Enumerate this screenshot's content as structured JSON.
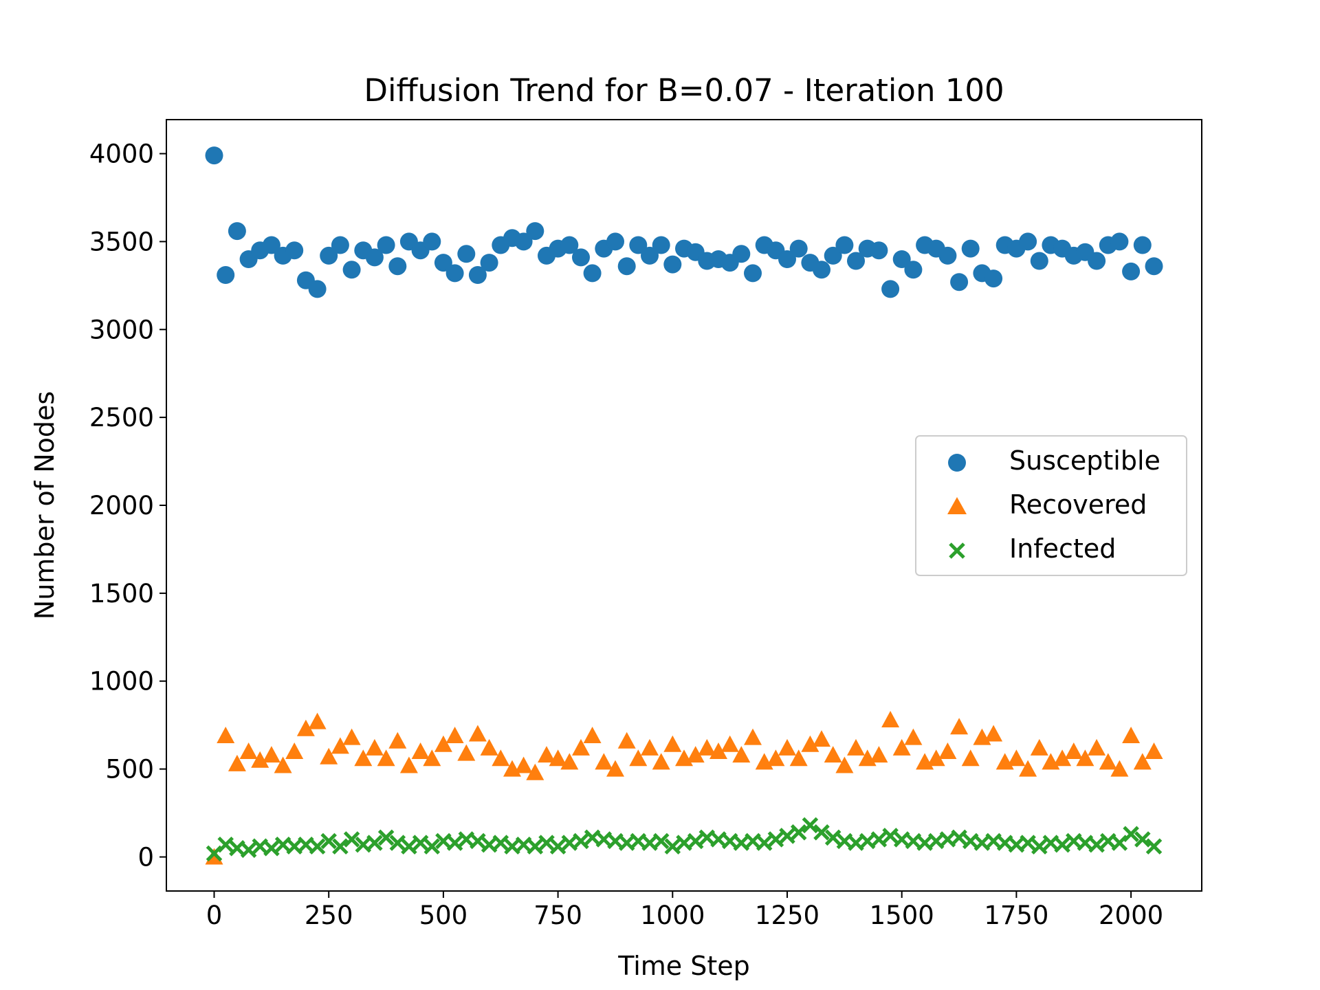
{
  "chart_data": {
    "type": "scatter",
    "title": "Diffusion Trend for B=0.07 - Iteration 100",
    "xlabel": "Time Step",
    "ylabel": "Number of Nodes",
    "xlim": [
      -104.3,
      2154.3
    ],
    "ylim": [
      -193.7,
      4193.7
    ],
    "xticks": [
      0,
      250,
      500,
      750,
      1000,
      1250,
      1500,
      1750,
      2000
    ],
    "yticks": [
      0,
      500,
      1000,
      1500,
      2000,
      2500,
      3000,
      3500,
      4000
    ],
    "grid": false,
    "legend_position": "center-right",
    "series": [
      {
        "name": "Susceptible",
        "marker": "circle",
        "color": "#1f77b4",
        "x": [
          0,
          25,
          50,
          75,
          100,
          125,
          150,
          175,
          200,
          225,
          250,
          275,
          300,
          325,
          350,
          375,
          400,
          425,
          450,
          475,
          500,
          525,
          550,
          575,
          600,
          625,
          650,
          675,
          700,
          725,
          750,
          775,
          800,
          825,
          850,
          875,
          900,
          925,
          950,
          975,
          1000,
          1025,
          1050,
          1075,
          1100,
          1125,
          1150,
          1175,
          1200,
          1225,
          1250,
          1275,
          1300,
          1325,
          1350,
          1375,
          1400,
          1425,
          1450,
          1475,
          1500,
          1525,
          1550,
          1575,
          1600,
          1625,
          1650,
          1675,
          1700,
          1725,
          1750,
          1775,
          1800,
          1825,
          1850,
          1875,
          1900,
          1925,
          1950,
          1975,
          2000,
          2025,
          2050
        ],
        "y": [
          3990,
          3310,
          3560,
          3400,
          3450,
          3480,
          3420,
          3450,
          3280,
          3230,
          3420,
          3480,
          3340,
          3450,
          3410,
          3480,
          3360,
          3500,
          3450,
          3500,
          3380,
          3320,
          3430,
          3310,
          3380,
          3480,
          3520,
          3500,
          3560,
          3420,
          3460,
          3480,
          3410,
          3320,
          3460,
          3500,
          3360,
          3480,
          3420,
          3480,
          3370,
          3460,
          3440,
          3390,
          3400,
          3380,
          3430,
          3320,
          3480,
          3450,
          3400,
          3460,
          3380,
          3340,
          3420,
          3480,
          3390,
          3460,
          3450,
          3230,
          3400,
          3340,
          3480,
          3460,
          3420,
          3270,
          3460,
          3320,
          3290,
          3480,
          3460,
          3500,
          3390,
          3480,
          3460,
          3420,
          3440,
          3390,
          3480,
          3500,
          3330,
          3480,
          3360
        ]
      },
      {
        "name": "Recovered",
        "marker": "triangle",
        "color": "#ff7f0e",
        "x": [
          0,
          25,
          50,
          75,
          100,
          125,
          150,
          175,
          200,
          225,
          250,
          275,
          300,
          325,
          350,
          375,
          400,
          425,
          450,
          475,
          500,
          525,
          550,
          575,
          600,
          625,
          650,
          675,
          700,
          725,
          750,
          775,
          800,
          825,
          850,
          875,
          900,
          925,
          950,
          975,
          1000,
          1025,
          1050,
          1075,
          1100,
          1125,
          1150,
          1175,
          1200,
          1225,
          1250,
          1275,
          1300,
          1325,
          1350,
          1375,
          1400,
          1425,
          1450,
          1475,
          1500,
          1525,
          1550,
          1575,
          1600,
          1625,
          1650,
          1675,
          1700,
          1725,
          1750,
          1775,
          1800,
          1825,
          1850,
          1875,
          1900,
          1925,
          1950,
          1975,
          2000,
          2025,
          2050
        ],
        "y": [
          0,
          690,
          530,
          600,
          550,
          580,
          520,
          600,
          730,
          770,
          570,
          630,
          680,
          560,
          620,
          560,
          660,
          520,
          600,
          560,
          640,
          690,
          590,
          700,
          620,
          560,
          500,
          520,
          480,
          580,
          560,
          540,
          620,
          690,
          540,
          500,
          660,
          560,
          620,
          540,
          640,
          560,
          580,
          620,
          600,
          640,
          580,
          680,
          540,
          560,
          620,
          560,
          640,
          670,
          580,
          520,
          620,
          560,
          580,
          780,
          620,
          680,
          540,
          560,
          600,
          740,
          560,
          680,
          700,
          540,
          560,
          500,
          620,
          540,
          560,
          600,
          560,
          620,
          540,
          500,
          690,
          540,
          600
        ]
      },
      {
        "name": "Infected",
        "marker": "x",
        "color": "#2ca02c",
        "x": [
          0,
          25,
          50,
          75,
          100,
          125,
          150,
          175,
          200,
          225,
          250,
          275,
          300,
          325,
          350,
          375,
          400,
          425,
          450,
          475,
          500,
          525,
          550,
          575,
          600,
          625,
          650,
          675,
          700,
          725,
          750,
          775,
          800,
          825,
          850,
          875,
          900,
          925,
          950,
          975,
          1000,
          1025,
          1050,
          1075,
          1100,
          1125,
          1150,
          1175,
          1200,
          1225,
          1250,
          1275,
          1300,
          1325,
          1350,
          1375,
          1400,
          1425,
          1450,
          1475,
          1500,
          1525,
          1550,
          1575,
          1600,
          1625,
          1650,
          1675,
          1700,
          1725,
          1750,
          1775,
          1800,
          1825,
          1850,
          1875,
          1900,
          1925,
          1950,
          1975,
          2000,
          2025,
          2050
        ],
        "y": [
          20,
          70,
          50,
          40,
          60,
          50,
          70,
          60,
          70,
          60,
          90,
          60,
          100,
          70,
          80,
          110,
          80,
          60,
          80,
          60,
          90,
          80,
          100,
          90,
          70,
          80,
          60,
          70,
          60,
          80,
          60,
          80,
          90,
          110,
          100,
          90,
          80,
          90,
          80,
          90,
          60,
          80,
          90,
          110,
          100,
          90,
          80,
          90,
          80,
          100,
          120,
          140,
          180,
          140,
          110,
          90,
          80,
          90,
          100,
          120,
          100,
          90,
          80,
          90,
          100,
          110,
          90,
          80,
          90,
          80,
          70,
          80,
          60,
          80,
          70,
          90,
          80,
          70,
          90,
          80,
          130,
          100,
          60
        ]
      }
    ]
  }
}
